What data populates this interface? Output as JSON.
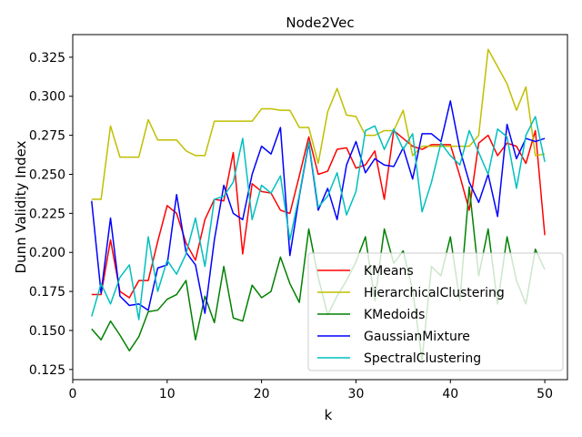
{
  "chart_data": {
    "type": "line",
    "title": "Node2Vec",
    "xlabel": "k",
    "ylabel": "Dunn Validity Index",
    "xlim": [
      0,
      52.4
    ],
    "ylim": [
      0.1185,
      0.3395
    ],
    "x_ticks": [
      0,
      10,
      20,
      30,
      40,
      50
    ],
    "x_tick_labels": [
      "0",
      "10",
      "20",
      "30",
      "40",
      "50"
    ],
    "y_ticks": [
      0.125,
      0.15,
      0.175,
      0.2,
      0.225,
      0.25,
      0.275,
      0.3,
      0.325
    ],
    "y_tick_labels": [
      "0.125",
      "0.150",
      "0.175",
      "0.200",
      "0.225",
      "0.250",
      "0.275",
      "0.300",
      "0.325"
    ],
    "grid": false,
    "legend_position": "lower-right",
    "x": [
      2,
      3,
      4,
      5,
      6,
      7,
      8,
      9,
      10,
      11,
      12,
      13,
      14,
      15,
      16,
      17,
      18,
      19,
      20,
      21,
      22,
      23,
      24,
      25,
      26,
      27,
      28,
      29,
      30,
      31,
      32,
      33,
      34,
      35,
      36,
      37,
      38,
      39,
      40,
      41,
      42,
      43,
      44,
      45,
      46,
      47,
      48,
      49,
      50
    ],
    "series": [
      {
        "name": "KMeans",
        "color": "#ff0000",
        "values": [
          0.173,
          0.173,
          0.208,
          0.175,
          0.171,
          0.182,
          0.182,
          0.207,
          0.23,
          0.225,
          0.206,
          0.195,
          0.221,
          0.234,
          0.233,
          0.264,
          0.199,
          0.244,
          0.239,
          0.238,
          0.227,
          0.225,
          0.249,
          0.274,
          0.25,
          0.252,
          0.266,
          0.267,
          0.254,
          0.256,
          0.265,
          0.234,
          0.278,
          0.273,
          0.268,
          0.266,
          0.269,
          0.269,
          0.269,
          0.249,
          0.227,
          0.27,
          0.275,
          0.262,
          0.27,
          0.268,
          0.257,
          0.278,
          0.211
        ]
      },
      {
        "name": "HierarchicalClustering",
        "color": "#bfbf00",
        "values": [
          0.234,
          0.234,
          0.281,
          0.261,
          0.261,
          0.261,
          0.285,
          0.272,
          0.272,
          0.272,
          0.265,
          0.262,
          0.262,
          0.284,
          0.284,
          0.284,
          0.284,
          0.284,
          0.292,
          0.292,
          0.291,
          0.291,
          0.28,
          0.28,
          0.257,
          0.29,
          0.305,
          0.288,
          0.287,
          0.275,
          0.275,
          0.278,
          0.278,
          0.291,
          0.262,
          0.268,
          0.268,
          0.268,
          0.268,
          0.268,
          0.268,
          0.275,
          0.33,
          0.319,
          0.308,
          0.291,
          0.306,
          0.262,
          0.263
        ]
      },
      {
        "name": "KMedoids",
        "color": "#008000",
        "values": [
          0.151,
          0.144,
          0.156,
          0.147,
          0.137,
          0.146,
          0.162,
          0.163,
          0.17,
          0.173,
          0.182,
          0.144,
          0.172,
          0.155,
          0.191,
          0.158,
          0.156,
          0.179,
          0.171,
          0.175,
          0.197,
          0.18,
          0.168,
          0.215,
          0.184,
          0.16,
          0.172,
          0.182,
          0.194,
          0.21,
          0.169,
          0.215,
          0.193,
          0.201,
          0.176,
          0.131,
          0.191,
          0.185,
          0.21,
          0.169,
          0.242,
          0.185,
          0.215,
          0.167,
          0.21,
          0.182,
          0.167,
          0.202,
          0.189
        ]
      },
      {
        "name": "GaussianMixture",
        "color": "#0000ff",
        "values": [
          0.233,
          0.174,
          0.222,
          0.172,
          0.166,
          0.167,
          0.163,
          0.19,
          0.192,
          0.237,
          0.2,
          0.192,
          0.161,
          0.208,
          0.243,
          0.225,
          0.221,
          0.25,
          0.268,
          0.263,
          0.28,
          0.198,
          0.236,
          0.27,
          0.227,
          0.241,
          0.221,
          0.256,
          0.271,
          0.251,
          0.26,
          0.256,
          0.255,
          0.267,
          0.247,
          0.276,
          0.276,
          0.271,
          0.297,
          0.266,
          0.245,
          0.232,
          0.25,
          0.223,
          0.282,
          0.26,
          0.273,
          0.271,
          0.273
        ]
      },
      {
        "name": "SpectralClustering",
        "color": "#00bfbf",
        "values": [
          0.159,
          0.18,
          0.167,
          0.184,
          0.192,
          0.157,
          0.21,
          0.175,
          0.195,
          0.186,
          0.199,
          0.222,
          0.191,
          0.234,
          0.236,
          0.245,
          0.273,
          0.221,
          0.243,
          0.238,
          0.249,
          0.208,
          0.237,
          0.271,
          0.229,
          0.236,
          0.251,
          0.224,
          0.239,
          0.278,
          0.281,
          0.266,
          0.279,
          0.266,
          0.276,
          0.226,
          0.245,
          0.27,
          0.262,
          0.256,
          0.278,
          0.264,
          0.25,
          0.279,
          0.274,
          0.241,
          0.275,
          0.287,
          0.258
        ]
      }
    ]
  }
}
